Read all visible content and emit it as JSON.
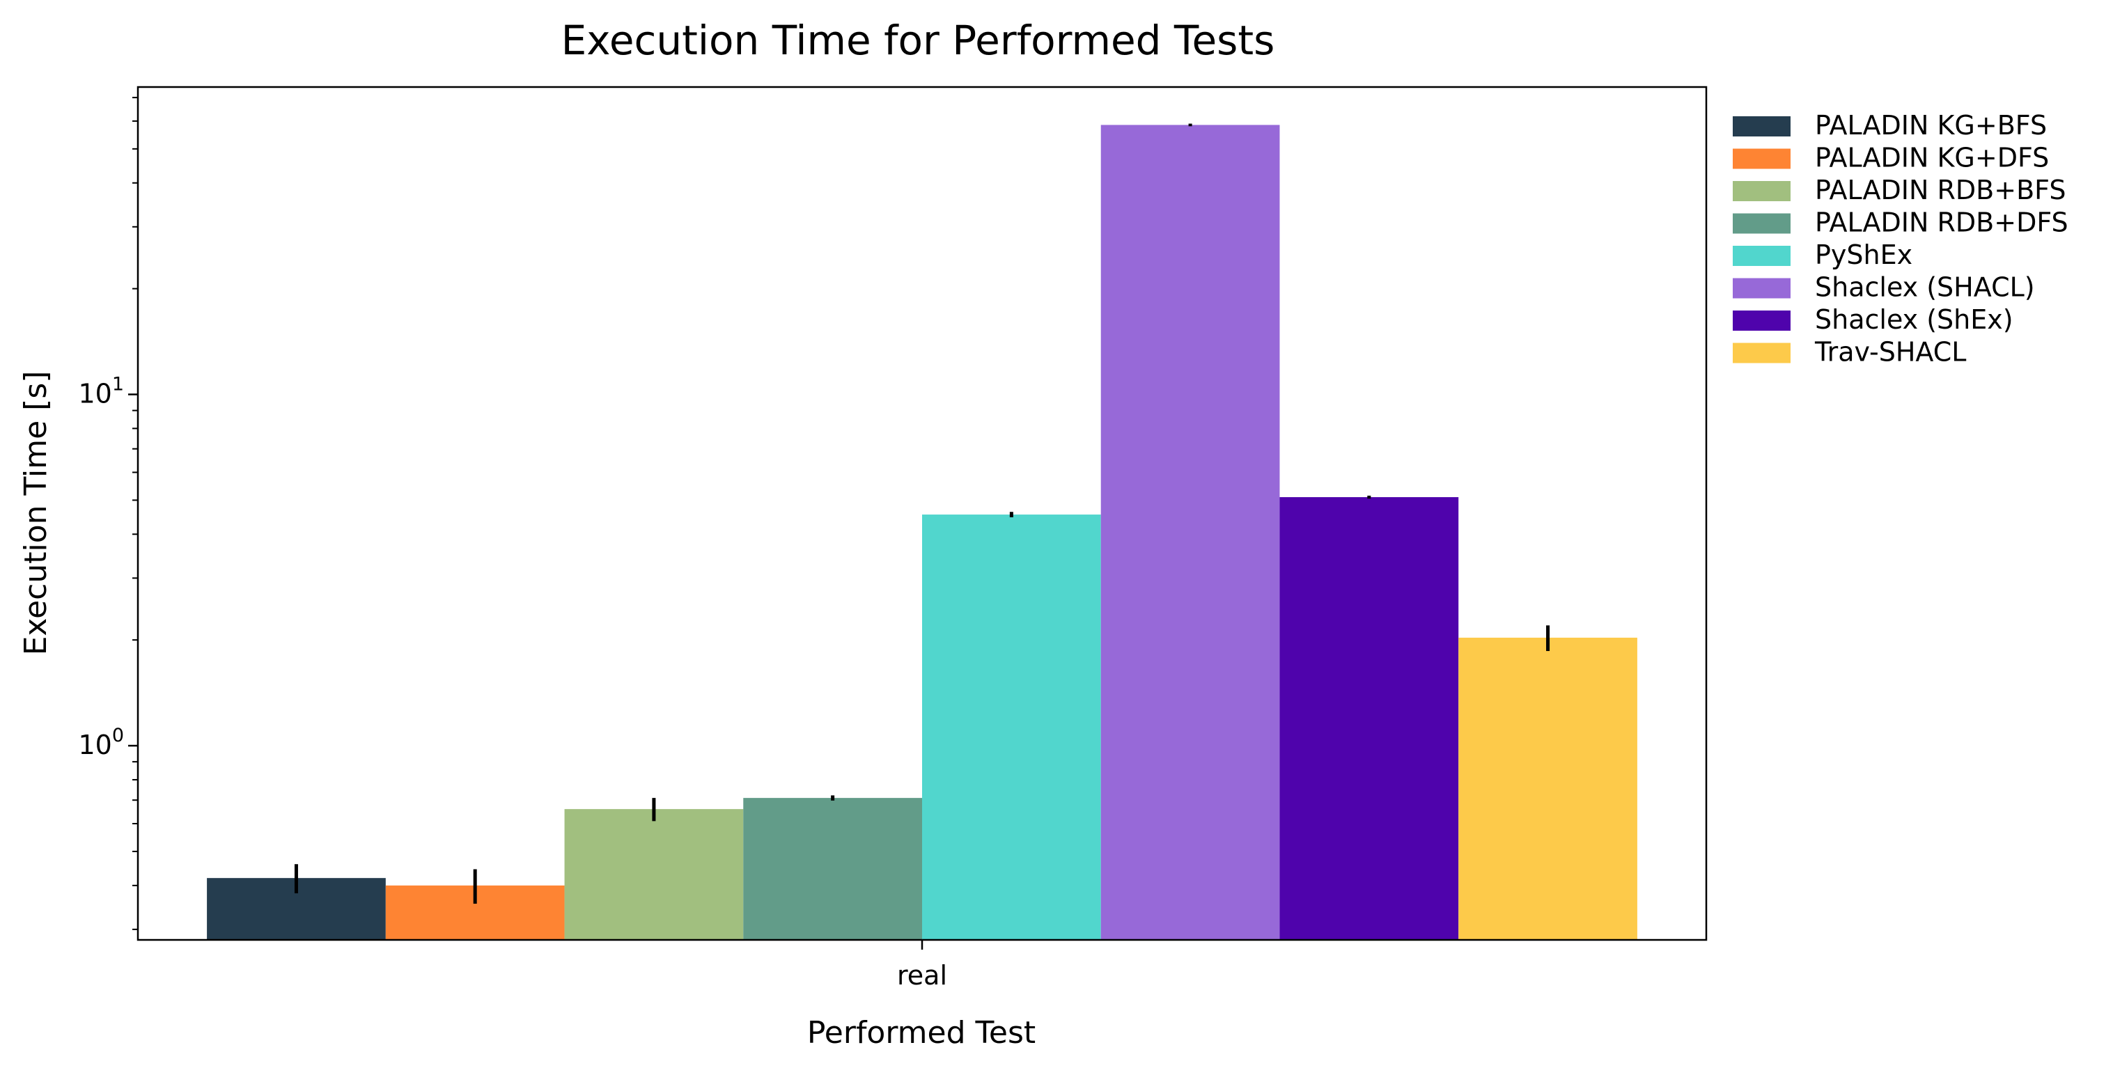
{
  "chart_data": {
    "type": "bar",
    "title": "Execution Time for Performed Tests",
    "xlabel": "Performed Test",
    "ylabel": "Execution Time [s]",
    "y_scale": "log",
    "ylim": [
      0.28,
      75
    ],
    "grid": false,
    "legend_position": "outside-right",
    "categories": [
      "real"
    ],
    "y_ticks": [
      {
        "value": 1,
        "base": "10",
        "exp": "0"
      },
      {
        "value": 10,
        "base": "10",
        "exp": "1"
      }
    ],
    "series": [
      {
        "name": "PALADIN KG+BFS",
        "color": "#253D4F",
        "values": [
          0.42
        ],
        "err": [
          0.04
        ]
      },
      {
        "name": "PALADIN KG+DFS",
        "color": "#FE8433",
        "values": [
          0.4
        ],
        "err": [
          0.045
        ]
      },
      {
        "name": "PALADIN RDB+BFS",
        "color": "#A1BF7F",
        "values": [
          0.66
        ],
        "err": [
          0.05
        ]
      },
      {
        "name": "PALADIN RDB+DFS",
        "color": "#629C89",
        "values": [
          0.71
        ],
        "err": [
          0.012
        ]
      },
      {
        "name": "PyShEx",
        "color": "#51D6CD",
        "values": [
          4.55
        ],
        "err": [
          0.08
        ]
      },
      {
        "name": "Shaclex (SHACL)",
        "color": "#9769D8",
        "values": [
          58.5
        ],
        "err": [
          0.5
        ]
      },
      {
        "name": "Shaclex (ShEx)",
        "color": "#4F03AC",
        "values": [
          5.1
        ],
        "err": [
          0.05
        ]
      },
      {
        "name": "Trav-SHACL",
        "color": "#FDCA4A",
        "values": [
          2.03
        ],
        "err": [
          0.17
        ]
      }
    ]
  }
}
